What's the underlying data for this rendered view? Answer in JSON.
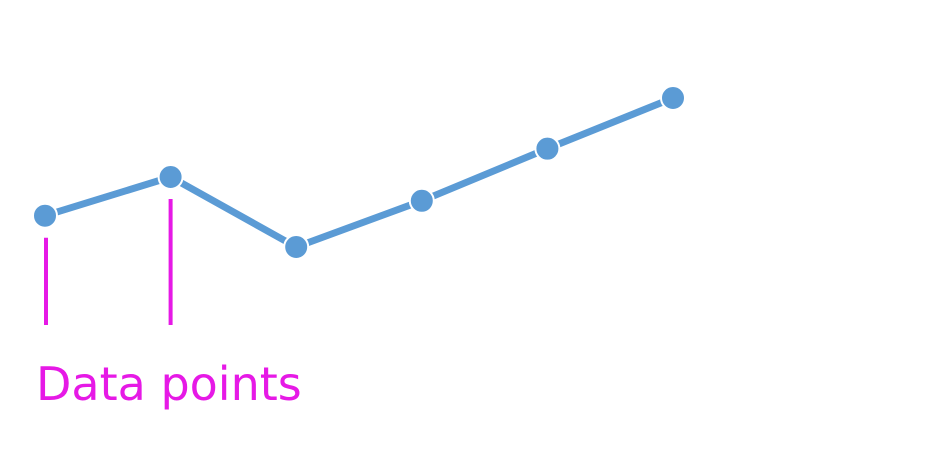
{
  "diagram": {
    "annotation": {
      "label": "Data points",
      "points_indicated": [
        1,
        2
      ]
    },
    "series": {
      "point_count": 6,
      "values": [
        0.21,
        0.47,
        0.0,
        0.31,
        0.66,
        1.0
      ]
    },
    "colors": {
      "series": "#5b9bd5",
      "annotation": "#e619e6",
      "background": "#ffffff"
    }
  }
}
